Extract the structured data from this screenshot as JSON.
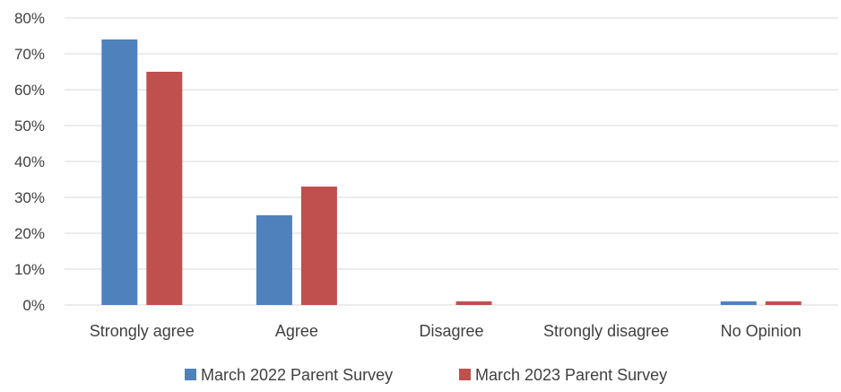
{
  "chart_data": {
    "type": "bar",
    "categories": [
      "Strongly agree",
      "Agree",
      "Disagree",
      "Strongly disagree",
      "No Opinion"
    ],
    "series": [
      {
        "name": "March 2022 Parent Survey",
        "values": [
          74,
          25,
          0,
          0,
          1
        ],
        "color": "#4F81BD"
      },
      {
        "name": "March 2023 Parent Survey",
        "values": [
          65,
          33,
          1,
          0,
          1
        ],
        "color": "#C0504D"
      }
    ],
    "ylim": [
      0,
      80
    ],
    "yticks": [
      0,
      10,
      20,
      30,
      40,
      50,
      60,
      70,
      80
    ],
    "y_tick_labels": [
      "0%",
      "10%",
      "20%",
      "30%",
      "40%",
      "50%",
      "60%",
      "70%",
      "80%"
    ],
    "title": "",
    "xlabel": "",
    "ylabel": "",
    "grid": true,
    "legend_position": "bottom",
    "colors": {
      "grid": "#D9D9D9",
      "text": "#404040"
    }
  }
}
